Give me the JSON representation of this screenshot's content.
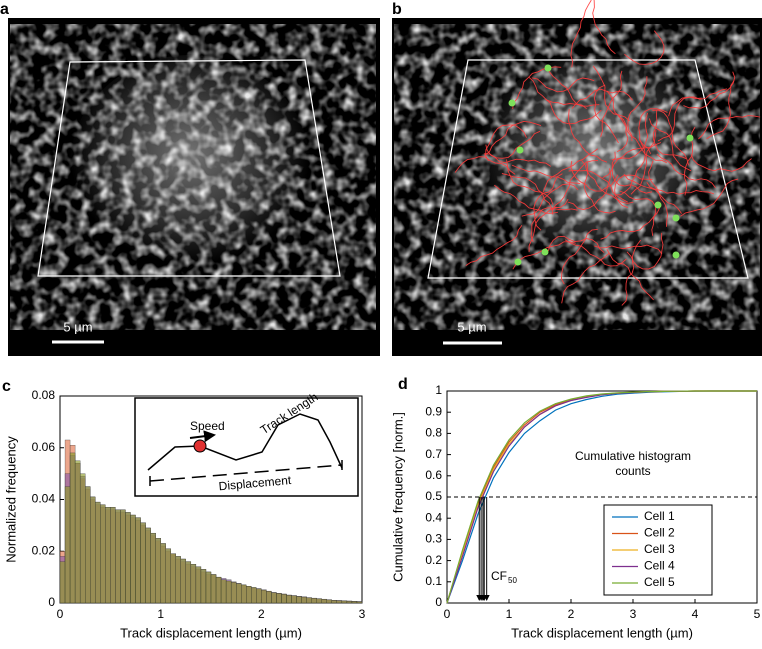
{
  "panels": {
    "a": {
      "label": "a",
      "scale_bar": "5 µm"
    },
    "b": {
      "label": "b",
      "scale_bar": "5 µm"
    }
  },
  "chart_data": [
    {
      "type": "histogram",
      "panel": "c",
      "xlabel": "Track displacement length (µm)",
      "ylabel": "Normalized frequency",
      "annotations": {
        "speed": "Speed",
        "track_length": "Track length",
        "displacement": "Displacement"
      },
      "xlim": [
        0,
        3
      ],
      "ylim": [
        0,
        0.08
      ],
      "xticks": [
        0,
        1,
        2,
        3
      ],
      "yticks": [
        0,
        0.02,
        0.04,
        0.06,
        0.08
      ],
      "bins": [
        0,
        0.05,
        0.1,
        0.15,
        0.2,
        0.25,
        0.3,
        0.35,
        0.4,
        0.45,
        0.5,
        0.55,
        0.6,
        0.65,
        0.7,
        0.75,
        0.8,
        0.85,
        0.9,
        0.95,
        1,
        1.05,
        1.1,
        1.15,
        1.2,
        1.25,
        1.3,
        1.35,
        1.4,
        1.45,
        1.5,
        1.55,
        1.6,
        1.65,
        1.7,
        1.75,
        1.8,
        1.85,
        1.9,
        1.95,
        2,
        2.05,
        2.1,
        2.15,
        2.2,
        2.25,
        2.3,
        2.35,
        2.4,
        2.45,
        2.5,
        2.55,
        2.6,
        2.65,
        2.7,
        2.75,
        2.8,
        2.85,
        2.9,
        2.95,
        3
      ],
      "series": [
        {
          "color": "#e2764f",
          "values": [
            0.02,
            0.063,
            0.061,
            0.054,
            0.048,
            0.044,
            0.04,
            0.038,
            0.037,
            0.036,
            0.036,
            0.035,
            0.035,
            0.034,
            0.033,
            0.032,
            0.03,
            0.028,
            0.026,
            0.024,
            0.022,
            0.02,
            0.019,
            0.017,
            0.016,
            0.015,
            0.014,
            0.013,
            0.012,
            0.011,
            0.011,
            0.01,
            0.009,
            0.0085,
            0.008,
            0.0074,
            0.0069,
            0.0064,
            0.0058,
            0.0054,
            0.005,
            0.0045,
            0.004,
            0.0037,
            0.0034,
            0.003,
            0.0028,
            0.0025,
            0.0023,
            0.002,
            0.0018,
            0.0016,
            0.0014,
            0.0012,
            0.001,
            0.0009,
            0.0008,
            0.0007,
            0.0006,
            0.0005
          ]
        },
        {
          "color": "#8e5aa8",
          "values": [
            0.018,
            0.05,
            0.057,
            0.054,
            0.049,
            0.045,
            0.041,
            0.039,
            0.038,
            0.037,
            0.037,
            0.036,
            0.036,
            0.035,
            0.034,
            0.033,
            0.031,
            0.029,
            0.027,
            0.025,
            0.023,
            0.021,
            0.019,
            0.018,
            0.017,
            0.016,
            0.015,
            0.014,
            0.013,
            0.012,
            0.011,
            0.01,
            0.0095,
            0.009,
            0.0082,
            0.0076,
            0.007,
            0.0065,
            0.006,
            0.0056,
            0.0051,
            0.0046,
            0.0041,
            0.0038,
            0.0035,
            0.0031,
            0.0029,
            0.0026,
            0.0024,
            0.0021,
            0.0019,
            0.0017,
            0.0015,
            0.0013,
            0.0011,
            0.001,
            0.0009,
            0.0008,
            0.0007,
            0.0006
          ]
        },
        {
          "color": "#8c9a2c",
          "values": [
            0.016,
            0.045,
            0.058,
            0.055,
            0.05,
            0.045,
            0.041,
            0.039,
            0.038,
            0.037,
            0.037,
            0.036,
            0.036,
            0.035,
            0.034,
            0.033,
            0.031,
            0.029,
            0.027,
            0.025,
            0.023,
            0.021,
            0.019,
            0.018,
            0.017,
            0.016,
            0.015,
            0.014,
            0.013,
            0.012,
            0.011,
            0.01,
            0.009,
            0.0085,
            0.008,
            0.0075,
            0.007,
            0.0065,
            0.006,
            0.0055,
            0.005,
            0.0045,
            0.004,
            0.0037,
            0.0034,
            0.003,
            0.0028,
            0.0025,
            0.0023,
            0.002,
            0.0018,
            0.0016,
            0.0014,
            0.0012,
            0.001,
            0.0009,
            0.0008,
            0.0007,
            0.0006,
            0.0005
          ]
        }
      ]
    },
    {
      "type": "line",
      "panel": "d",
      "xlabel": "Track displacement length (µm)",
      "ylabel": "Cumulative frequency [norm.]",
      "annotation": [
        "Cumulative histogram",
        "counts"
      ],
      "cf_label": "CF",
      "cf_subscript": "50",
      "reference_line": 0.5,
      "cf50": [
        0.52,
        0.55,
        0.58,
        0.6,
        0.64
      ],
      "xlim": [
        0,
        5
      ],
      "ylim": [
        0,
        1
      ],
      "xticks": [
        0,
        1,
        2,
        3,
        4,
        5
      ],
      "yticks": [
        0,
        0.1,
        0.2,
        0.3,
        0.4,
        0.5,
        0.6,
        0.7,
        0.8,
        0.9,
        1
      ],
      "legend": "lower right",
      "x": [
        0,
        0.25,
        0.5,
        0.75,
        1,
        1.25,
        1.5,
        1.75,
        2,
        2.25,
        2.5,
        2.75,
        3,
        3.25,
        3.5,
        3.75,
        4,
        4.25,
        4.5,
        4.75,
        5
      ],
      "series": [
        {
          "name": "Cell 1",
          "color": "#0072bd",
          "values": [
            0,
            0.2,
            0.42,
            0.59,
            0.71,
            0.8,
            0.86,
            0.91,
            0.94,
            0.96,
            0.975,
            0.985,
            0.99,
            0.994,
            0.996,
            0.998,
            0.999,
            1,
            1,
            1,
            1
          ]
        },
        {
          "name": "Cell 2",
          "color": "#d95319",
          "values": [
            0,
            0.24,
            0.47,
            0.64,
            0.76,
            0.84,
            0.9,
            0.935,
            0.96,
            0.975,
            0.985,
            0.99,
            0.994,
            0.997,
            0.998,
            0.999,
            1,
            1,
            1,
            1,
            1
          ]
        },
        {
          "name": "Cell 3",
          "color": "#edb120",
          "values": [
            0,
            0.23,
            0.46,
            0.63,
            0.75,
            0.83,
            0.89,
            0.93,
            0.955,
            0.972,
            0.983,
            0.99,
            0.994,
            0.996,
            0.998,
            0.999,
            1,
            1,
            1,
            1,
            1
          ]
        },
        {
          "name": "Cell 4",
          "color": "#7e2f8e",
          "values": [
            0,
            0.22,
            0.45,
            0.62,
            0.74,
            0.83,
            0.89,
            0.93,
            0.955,
            0.97,
            0.982,
            0.989,
            0.993,
            0.996,
            0.998,
            0.999,
            1,
            1,
            1,
            1,
            1
          ]
        },
        {
          "name": "Cell 5",
          "color": "#77ac30",
          "values": [
            0,
            0.25,
            0.48,
            0.65,
            0.77,
            0.85,
            0.905,
            0.94,
            0.962,
            0.977,
            0.986,
            0.991,
            0.995,
            0.997,
            0.998,
            0.999,
            1,
            1,
            1,
            1,
            1
          ]
        }
      ]
    }
  ]
}
